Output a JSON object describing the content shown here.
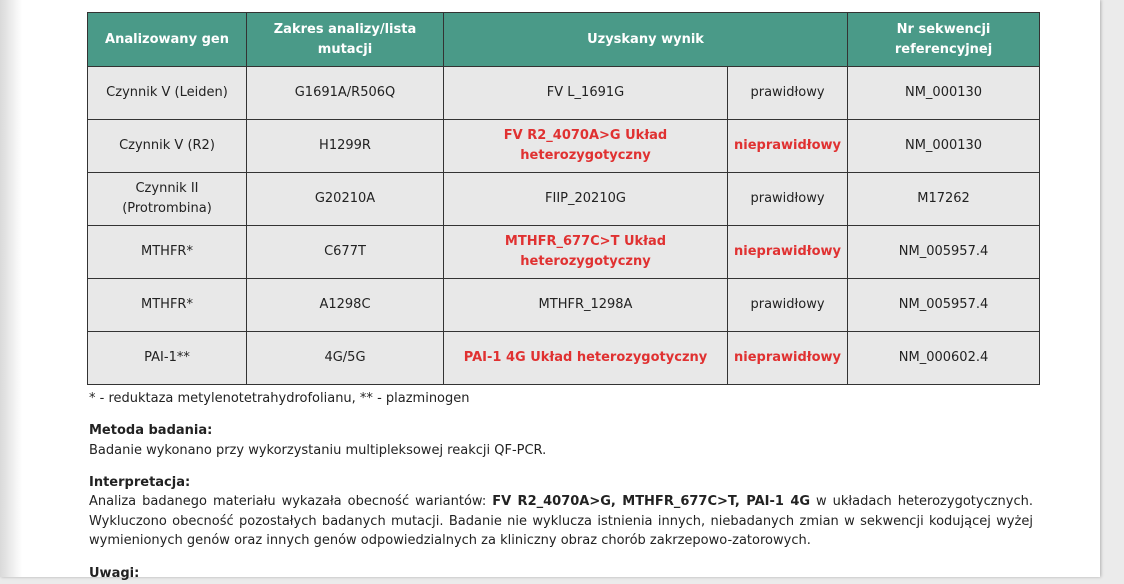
{
  "table": {
    "headers": [
      "Analizowany gen",
      "Zakres analizy/lista mutacji",
      "Uzyskany wynik",
      "Nr sekwencji referencyjnej"
    ],
    "rows": [
      {
        "cells": [
          "Czynnik V (Leiden)",
          "G1691A/R506Q",
          "FV L_1691G",
          "prawidłowy",
          "NM_000130"
        ],
        "highlight": false
      },
      {
        "cells": [
          "Czynnik V (R2)",
          "H1299R",
          "FV R2_4070A>G Układ heterozygotyczny",
          "nieprawidłowy",
          "NM_000130"
        ],
        "highlight": true
      },
      {
        "cells": [
          "Czynnik II (Protrombina)",
          "G20210A",
          "FIIP_20210G",
          "prawidłowy",
          "M17262"
        ],
        "highlight": false
      },
      {
        "cells": [
          "MTHFR*",
          "C677T",
          "MTHFR_677C>T Układ heterozygotyczny",
          "nieprawidłowy",
          "NM_005957.4"
        ],
        "highlight": true
      },
      {
        "cells": [
          "MTHFR*",
          "A1298C",
          "MTHFR_1298A",
          "prawidłowy",
          "NM_005957.4"
        ],
        "highlight": false
      },
      {
        "cells": [
          "PAI-1**",
          "4G/5G",
          "PAI-1 4G Układ heterozygotyczny",
          "nieprawidłowy",
          "NM_000602.4"
        ],
        "highlight": true
      }
    ]
  },
  "footnote": "* - reduktaza metylenotetrahydrofolianu, ** - plazminogen",
  "method": {
    "title": "Metoda badania:",
    "text": "Badanie wykonano przy wykorzystaniu multipleksowej reakcji QF-PCR."
  },
  "interpretation": {
    "title": "Interpretacja:",
    "parts": [
      "Analiza badanego materiału wykazała obecność wariantów: ",
      "FV R2_4070A>G, MTHFR_677C>T, PAI-1 4G",
      " w układach heterozygotycznych. Wykluczono obecność pozostałych badanych mutacji. Badanie nie wyklucza istnienia innych, niebadanych zmian w sekwencji kodującej wyżej wymienionych genów oraz innych genów odpowiedzialnych za kliniczny obraz chorób zakrzepowo-zatorowych."
    ]
  },
  "notes": {
    "title": "Uwagi:"
  }
}
